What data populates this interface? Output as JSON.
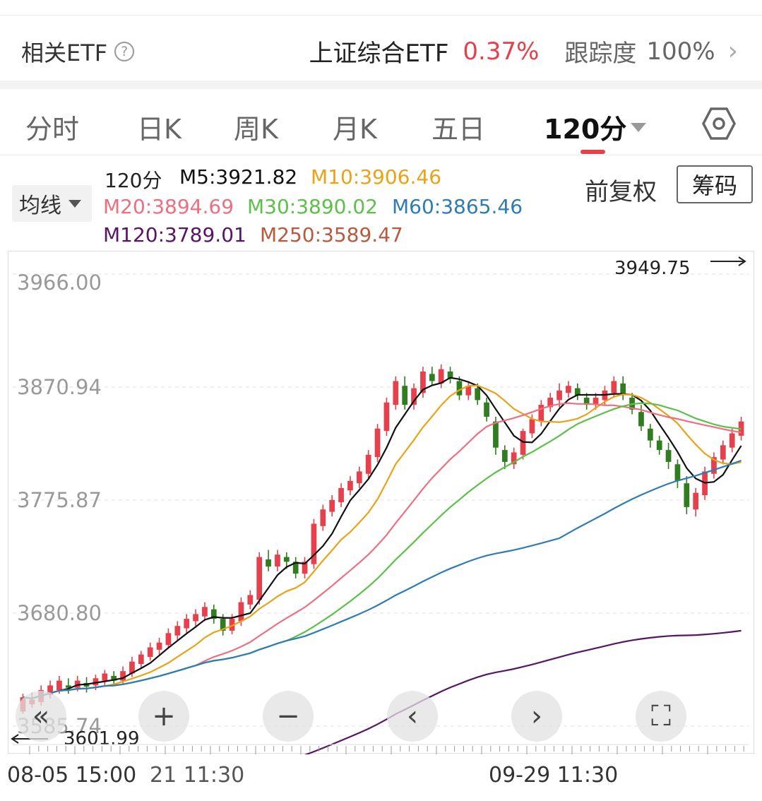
{
  "etf_bar": {
    "label": "相关ETF",
    "help_icon": "question-circle-icon",
    "etf_name": "上证综合ETF",
    "etf_change": "0.37%",
    "tracking_label": "跟踪度",
    "tracking_value": "100%",
    "chevron_icon": "chevron-right-icon"
  },
  "tabs": [
    {
      "label": "分时",
      "active": false
    },
    {
      "label": "日K",
      "active": false
    },
    {
      "label": "周K",
      "active": false
    },
    {
      "label": "月K",
      "active": false
    },
    {
      "label": "五日",
      "active": false
    },
    {
      "label": "120分",
      "active": true
    }
  ],
  "settings_icon": "hexagon-settings-icon",
  "indicator_select": "均线",
  "buttons": {
    "fuquan": "前复权",
    "chouma": "筹码"
  },
  "legend": {
    "period": "120分",
    "m5": "M5:3921.82",
    "m10": "M10:3906.46",
    "m20": "M20:3894.69",
    "m30": "M30:3890.02",
    "m60": "M60:3865.46",
    "m120": "M120:3789.01",
    "m250": "M250:3589.47"
  },
  "colors": {
    "up": "#e5404b",
    "down": "#2f7d1f",
    "m5": "#111111",
    "m10": "#e8a317",
    "m20": "#ee6f80",
    "m30": "#5cc04a",
    "m60": "#2f7cb5",
    "m120": "#571566",
    "m250": "#b75a3e"
  },
  "chart_data": {
    "type": "candlestick",
    "period": "120分",
    "y_ticks": [
      "3966.00",
      "3870.94",
      "3775.87",
      "3680.80",
      "3585.74"
    ],
    "y_range": [
      3585.74,
      3966.0
    ],
    "x_labels": [
      "08-05 15:00",
      "21 11:30",
      "09-29 11:30"
    ],
    "max_marker": "3949.75",
    "min_marker": "3601.99",
    "candles": [
      {
        "o": 3598,
        "c": 3610,
        "h": 3613,
        "l": 3596
      },
      {
        "o": 3604,
        "c": 3608,
        "h": 3614,
        "l": 3601
      },
      {
        "o": 3606,
        "c": 3616,
        "h": 3620,
        "l": 3603
      },
      {
        "o": 3612,
        "c": 3620,
        "h": 3624,
        "l": 3609
      },
      {
        "o": 3616,
        "c": 3624,
        "h": 3628,
        "l": 3613
      },
      {
        "o": 3620,
        "c": 3618,
        "h": 3626,
        "l": 3613
      },
      {
        "o": 3618,
        "c": 3624,
        "h": 3628,
        "l": 3615
      },
      {
        "o": 3622,
        "c": 3619,
        "h": 3627,
        "l": 3614
      },
      {
        "o": 3620,
        "c": 3626,
        "h": 3629,
        "l": 3616
      },
      {
        "o": 3624,
        "c": 3630,
        "h": 3633,
        "l": 3620
      },
      {
        "o": 3628,
        "c": 3624,
        "h": 3632,
        "l": 3620
      },
      {
        "o": 3624,
        "c": 3632,
        "h": 3636,
        "l": 3621
      },
      {
        "o": 3630,
        "c": 3640,
        "h": 3644,
        "l": 3627
      },
      {
        "o": 3638,
        "c": 3646,
        "h": 3649,
        "l": 3634
      },
      {
        "o": 3644,
        "c": 3652,
        "h": 3656,
        "l": 3641
      },
      {
        "o": 3650,
        "c": 3656,
        "h": 3660,
        "l": 3646
      },
      {
        "o": 3654,
        "c": 3664,
        "h": 3668,
        "l": 3651
      },
      {
        "o": 3662,
        "c": 3670,
        "h": 3674,
        "l": 3658
      },
      {
        "o": 3668,
        "c": 3676,
        "h": 3680,
        "l": 3664
      },
      {
        "o": 3674,
        "c": 3680,
        "h": 3684,
        "l": 3670
      },
      {
        "o": 3678,
        "c": 3686,
        "h": 3690,
        "l": 3674
      },
      {
        "o": 3684,
        "c": 3676,
        "h": 3688,
        "l": 3672
      },
      {
        "o": 3676,
        "c": 3666,
        "h": 3680,
        "l": 3662
      },
      {
        "o": 3666,
        "c": 3676,
        "h": 3680,
        "l": 3663
      },
      {
        "o": 3674,
        "c": 3690,
        "h": 3694,
        "l": 3670
      },
      {
        "o": 3688,
        "c": 3696,
        "h": 3700,
        "l": 3684
      },
      {
        "o": 3692,
        "c": 3728,
        "h": 3732,
        "l": 3688
      },
      {
        "o": 3726,
        "c": 3720,
        "h": 3734,
        "l": 3716
      },
      {
        "o": 3720,
        "c": 3730,
        "h": 3734,
        "l": 3716
      },
      {
        "o": 3728,
        "c": 3724,
        "h": 3732,
        "l": 3718
      },
      {
        "o": 3724,
        "c": 3714,
        "h": 3728,
        "l": 3710
      },
      {
        "o": 3714,
        "c": 3724,
        "h": 3728,
        "l": 3710
      },
      {
        "o": 3722,
        "c": 3756,
        "h": 3760,
        "l": 3718
      },
      {
        "o": 3754,
        "c": 3768,
        "h": 3772,
        "l": 3750
      },
      {
        "o": 3766,
        "c": 3776,
        "h": 3780,
        "l": 3762
      },
      {
        "o": 3774,
        "c": 3786,
        "h": 3790,
        "l": 3770
      },
      {
        "o": 3784,
        "c": 3792,
        "h": 3796,
        "l": 3780
      },
      {
        "o": 3790,
        "c": 3800,
        "h": 3804,
        "l": 3786
      },
      {
        "o": 3798,
        "c": 3814,
        "h": 3818,
        "l": 3794
      },
      {
        "o": 3812,
        "c": 3836,
        "h": 3840,
        "l": 3808
      },
      {
        "o": 3834,
        "c": 3858,
        "h": 3862,
        "l": 3830
      },
      {
        "o": 3856,
        "c": 3876,
        "h": 3880,
        "l": 3852
      },
      {
        "o": 3872,
        "c": 3856,
        "h": 3880,
        "l": 3852
      },
      {
        "o": 3856,
        "c": 3870,
        "h": 3874,
        "l": 3852
      },
      {
        "o": 3866,
        "c": 3884,
        "h": 3888,
        "l": 3862
      },
      {
        "o": 3882,
        "c": 3876,
        "h": 3888,
        "l": 3872
      },
      {
        "o": 3874,
        "c": 3886,
        "h": 3890,
        "l": 3870
      },
      {
        "o": 3884,
        "c": 3878,
        "h": 3888,
        "l": 3874
      },
      {
        "o": 3876,
        "c": 3864,
        "h": 3880,
        "l": 3860
      },
      {
        "o": 3864,
        "c": 3872,
        "h": 3876,
        "l": 3860
      },
      {
        "o": 3870,
        "c": 3860,
        "h": 3874,
        "l": 3856
      },
      {
        "o": 3858,
        "c": 3846,
        "h": 3862,
        "l": 3842
      },
      {
        "o": 3842,
        "c": 3820,
        "h": 3846,
        "l": 3814
      },
      {
        "o": 3818,
        "c": 3808,
        "h": 3822,
        "l": 3802
      },
      {
        "o": 3806,
        "c": 3816,
        "h": 3820,
        "l": 3802
      },
      {
        "o": 3814,
        "c": 3834,
        "h": 3836,
        "l": 3810
      },
      {
        "o": 3832,
        "c": 3844,
        "h": 3848,
        "l": 3828
      },
      {
        "o": 3842,
        "c": 3856,
        "h": 3860,
        "l": 3838
      },
      {
        "o": 3854,
        "c": 3862,
        "h": 3866,
        "l": 3850
      },
      {
        "o": 3860,
        "c": 3868,
        "h": 3874,
        "l": 3854
      },
      {
        "o": 3866,
        "c": 3872,
        "h": 3876,
        "l": 3862
      },
      {
        "o": 3870,
        "c": 3864,
        "h": 3874,
        "l": 3860
      },
      {
        "o": 3862,
        "c": 3856,
        "h": 3866,
        "l": 3852
      },
      {
        "o": 3856,
        "c": 3862,
        "h": 3866,
        "l": 3852
      },
      {
        "o": 3860,
        "c": 3868,
        "h": 3872,
        "l": 3856
      },
      {
        "o": 3866,
        "c": 3876,
        "h": 3880,
        "l": 3862
      },
      {
        "o": 3874,
        "c": 3864,
        "h": 3880,
        "l": 3860
      },
      {
        "o": 3862,
        "c": 3852,
        "h": 3866,
        "l": 3848
      },
      {
        "o": 3850,
        "c": 3838,
        "h": 3856,
        "l": 3834
      },
      {
        "o": 3836,
        "c": 3826,
        "h": 3840,
        "l": 3820
      },
      {
        "o": 3826,
        "c": 3818,
        "h": 3830,
        "l": 3814
      },
      {
        "o": 3818,
        "c": 3808,
        "h": 3824,
        "l": 3802
      },
      {
        "o": 3806,
        "c": 3792,
        "h": 3810,
        "l": 3786
      },
      {
        "o": 3790,
        "c": 3770,
        "h": 3796,
        "l": 3764
      },
      {
        "o": 3768,
        "c": 3782,
        "h": 3786,
        "l": 3762
      },
      {
        "o": 3780,
        "c": 3800,
        "h": 3804,
        "l": 3776
      },
      {
        "o": 3798,
        "c": 3812,
        "h": 3816,
        "l": 3794
      },
      {
        "o": 3810,
        "c": 3822,
        "h": 3826,
        "l": 3806
      },
      {
        "o": 3820,
        "c": 3832,
        "h": 3836,
        "l": 3816
      },
      {
        "o": 3830,
        "c": 3842,
        "h": 3846,
        "l": 3826
      }
    ],
    "series": [
      {
        "name": "M5",
        "values": []
      },
      {
        "name": "M10",
        "values": []
      },
      {
        "name": "M20",
        "values": []
      },
      {
        "name": "M30",
        "values": []
      },
      {
        "name": "M60",
        "values": []
      },
      {
        "name": "M120",
        "values": []
      }
    ]
  },
  "controls": [
    "rewind-icon",
    "zoom-in-icon",
    "zoom-out-icon",
    "chevron-left-icon",
    "chevron-right-icon",
    "fullscreen-icon"
  ]
}
